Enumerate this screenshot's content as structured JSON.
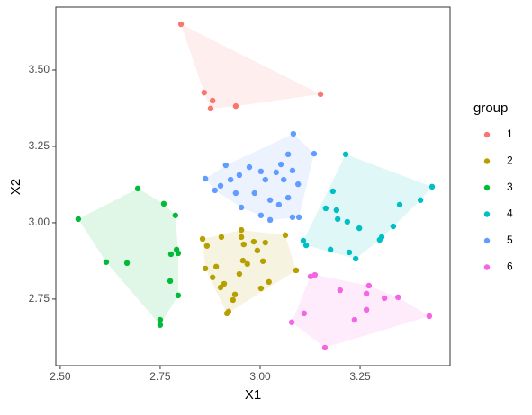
{
  "chart_data": {
    "type": "scatter",
    "hull": true,
    "xlabel": "X1",
    "ylabel": "X2",
    "legend_title": "group",
    "legend": "right",
    "xlim": [
      2.489,
      3.475
    ],
    "ylim": [
      2.532,
      3.706
    ],
    "xticks": [
      {
        "value": 2.5,
        "label": "2.50"
      },
      2.75,
      {
        "value": 3,
        "label": "3.00"
      },
      3.25
    ],
    "yticks": [
      2.75,
      {
        "value": 3,
        "label": "3.00"
      },
      3.25,
      {
        "value": 3.5,
        "label": "3.50"
      }
    ],
    "series": [
      {
        "name": "1",
        "color": "#F8766D",
        "x": [
          2.802,
          2.86,
          2.881,
          2.876,
          2.939,
          3.151
        ],
        "y": [
          3.65,
          3.426,
          3.4,
          3.374,
          3.382,
          3.421
        ]
      },
      {
        "name": "2",
        "color": "#B79F00",
        "x": [
          2.856,
          2.867,
          2.863,
          2.89,
          2.903,
          2.881,
          2.91,
          2.901,
          2.932,
          2.921,
          2.917,
          2.937,
          2.953,
          2.953,
          2.959,
          2.957,
          2.968,
          2.948,
          2.984,
          2.993,
          3.013,
          3.007,
          3.022,
          3.002,
          3.063,
          3.09
        ],
        "y": [
          2.947,
          2.924,
          2.85,
          2.856,
          2.953,
          2.821,
          2.8,
          2.788,
          2.747,
          2.709,
          2.703,
          2.765,
          2.976,
          2.953,
          2.929,
          2.876,
          2.865,
          2.832,
          2.938,
          2.909,
          2.935,
          2.874,
          2.806,
          2.785,
          2.959,
          2.844
        ]
      },
      {
        "name": "3",
        "color": "#00BA38",
        "x": [
          2.545,
          2.694,
          2.759,
          2.788,
          2.615,
          2.667,
          2.777,
          2.791,
          2.795,
          2.775,
          2.795,
          2.75,
          2.75
        ],
        "y": [
          3.012,
          3.112,
          3.062,
          3.024,
          2.871,
          2.868,
          2.897,
          2.912,
          2.9,
          2.809,
          2.762,
          2.682,
          2.665
        ]
      },
      {
        "name": "4",
        "color": "#00BFC4",
        "x": [
          3.214,
          3.43,
          3.401,
          3.349,
          3.182,
          3.164,
          3.191,
          3.194,
          3.218,
          3.248,
          3.333,
          3.304,
          3.299,
          3.176,
          3.223,
          3.239,
          3.108,
          3.115
        ],
        "y": [
          3.224,
          3.118,
          3.074,
          3.059,
          3.103,
          3.047,
          3.041,
          3.012,
          3.003,
          2.982,
          2.988,
          2.953,
          2.944,
          2.912,
          2.903,
          2.882,
          2.941,
          2.926
        ]
      },
      {
        "name": "5",
        "color": "#619CFF",
        "x": [
          3.083,
          3.135,
          3.07,
          3.052,
          3.081,
          3.002,
          3.013,
          2.973,
          2.926,
          2.914,
          2.939,
          2.986,
          2.887,
          2.863,
          3.095,
          3.059,
          3.07,
          3.047,
          2.953,
          3.002,
          3.025,
          3.025,
          3.081,
          3.097,
          3.04,
          2.948,
          2.901
        ],
        "y": [
          3.291,
          3.226,
          3.224,
          3.191,
          3.171,
          3.168,
          3.141,
          3.182,
          3.141,
          3.188,
          3.097,
          3.097,
          3.106,
          3.144,
          3.126,
          3.141,
          3.082,
          3.059,
          3.05,
          3.024,
          3.009,
          3.074,
          3.018,
          3.018,
          3.165,
          3.156,
          3.121
        ]
      },
      {
        "name": "6",
        "color": "#F564E3",
        "x": [
          3.423,
          3.345,
          3.311,
          3.272,
          3.266,
          3.2,
          3.126,
          3.137,
          3.11,
          3.079,
          3.162,
          3.236,
          3.266
        ],
        "y": [
          2.694,
          2.756,
          2.753,
          2.794,
          2.768,
          2.779,
          2.824,
          2.829,
          2.703,
          2.674,
          2.591,
          2.682,
          2.715
        ]
      }
    ]
  }
}
